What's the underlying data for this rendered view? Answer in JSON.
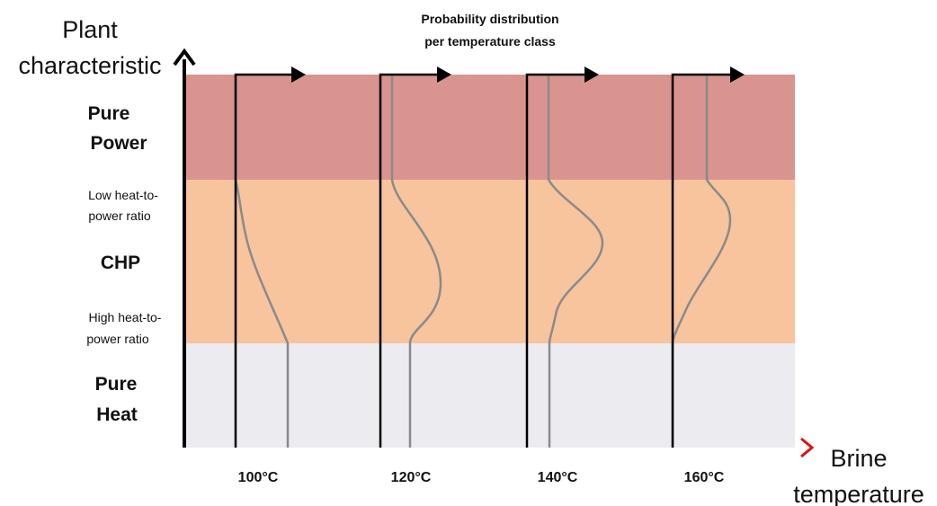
{
  "header": {
    "line1": "Probability distribution",
    "line2": "per temperature class"
  },
  "y_axis": {
    "line1": "Plant",
    "line2": "characteristic"
  },
  "x_axis": {
    "line1": "Brine",
    "line2": "temperature"
  },
  "regions": {
    "pure_power": {
      "line1": "Pure",
      "line2": "Power",
      "color": "#d9948f"
    },
    "chp": {
      "label": "CHP",
      "color": "#f7c49e"
    },
    "low_ratio": {
      "line1": "Low heat-to-",
      "line2": "power ratio"
    },
    "high_ratio": {
      "line1": "High heat-to-",
      "line2": "power ratio"
    },
    "pure_heat": {
      "line1": "Pure",
      "line2": "Heat",
      "color": "#ecebf0"
    }
  },
  "temperature_classes": [
    "100°C",
    "120°C",
    "140°C",
    "160°C"
  ],
  "colors": {
    "axis": "#000000",
    "distribution_curve": "#8a8a8a",
    "x_axis_gradient_start": "#2aa7e0",
    "x_axis_gradient_end": "#e01010"
  }
}
